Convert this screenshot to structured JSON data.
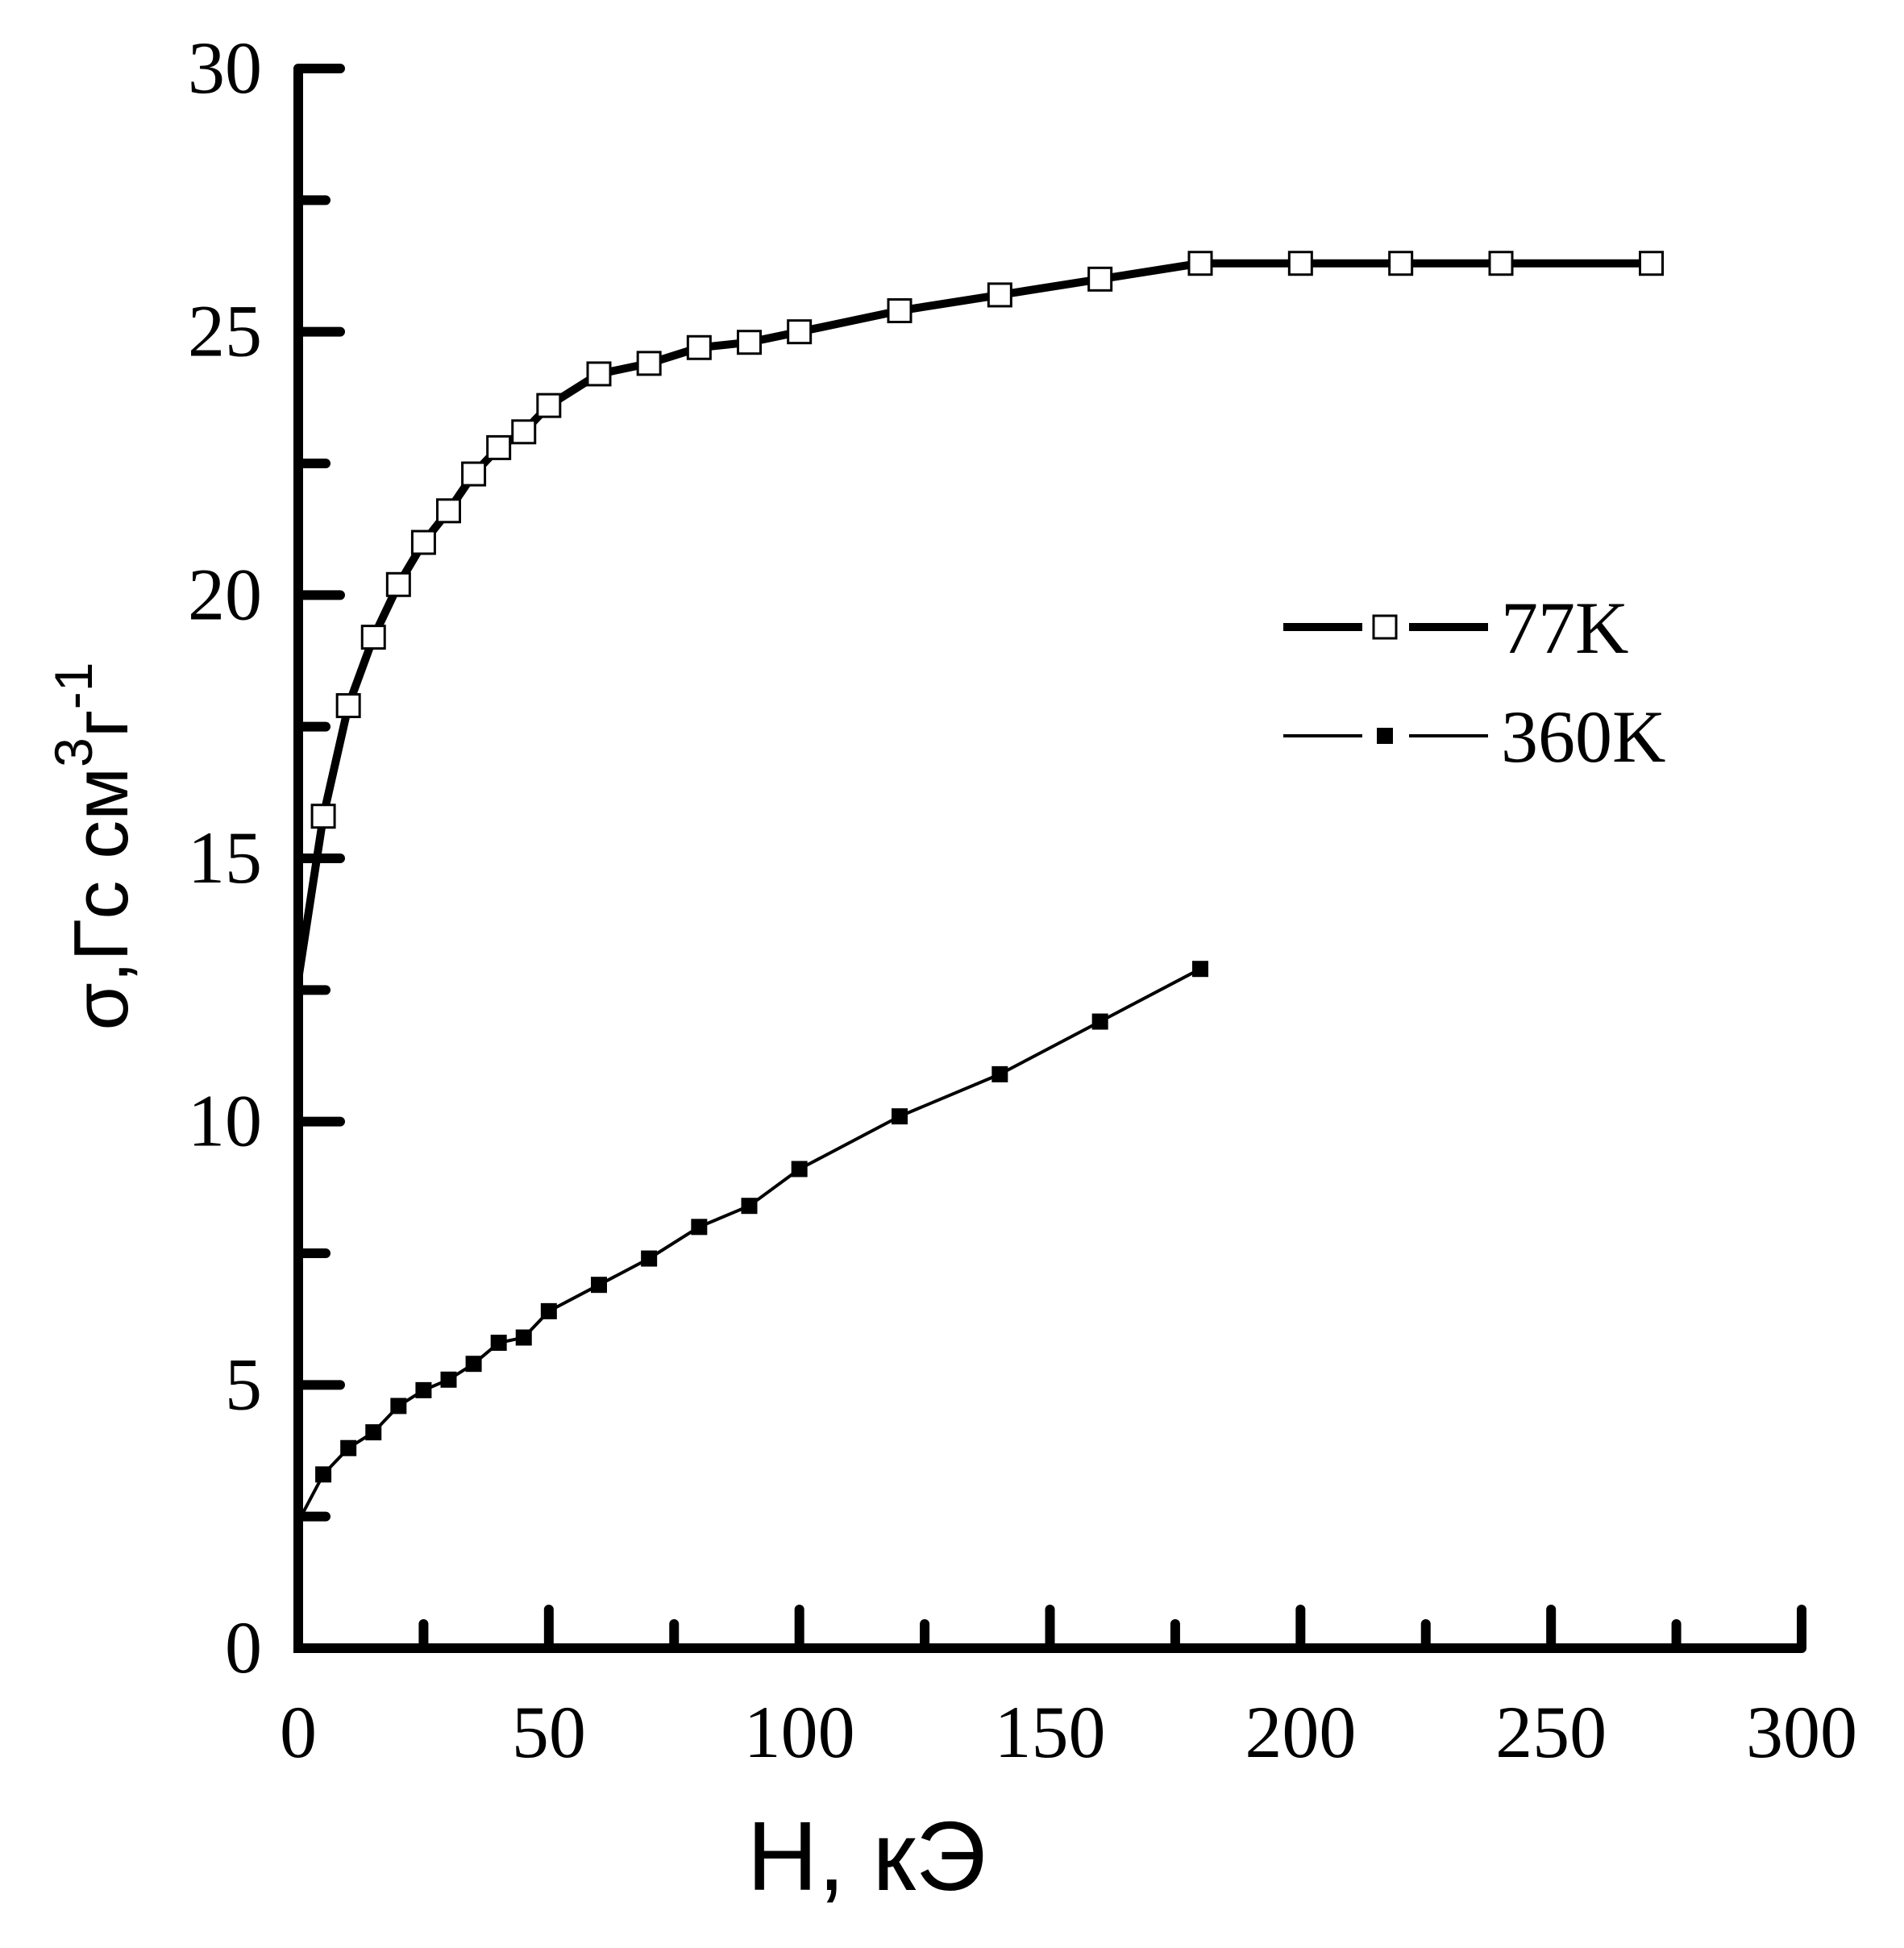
{
  "chart_data": {
    "type": "line",
    "title": "",
    "xlabel": "H, кЭ",
    "ylabel": {
      "base": "σ,Гс см",
      "sup1": "3",
      "mid": "г",
      "sup2": "-1"
    },
    "xlim": [
      0,
      300
    ],
    "ylim": [
      0,
      30
    ],
    "x_ticks": [
      "0",
      "50",
      "100",
      "150",
      "200",
      "250",
      "300"
    ],
    "y_ticks": [
      "0",
      "5",
      "10",
      "15",
      "20",
      "25",
      "30"
    ],
    "grid": false,
    "legend_position": "right-middle",
    "series": [
      {
        "name": "77K",
        "marker": "open-square",
        "line": "thick",
        "x": [
          0,
          5,
          10,
          15,
          20,
          25,
          30,
          35,
          40,
          45,
          50,
          60,
          70,
          80,
          90,
          100,
          120,
          140,
          160,
          180,
          200,
          220,
          240,
          270
        ],
        "y": [
          12.7,
          15.8,
          17.9,
          19.2,
          20.2,
          21.0,
          21.6,
          22.3,
          22.8,
          23.1,
          23.6,
          24.2,
          24.4,
          24.7,
          24.8,
          25.0,
          25.4,
          25.7,
          26.0,
          26.3,
          26.3,
          26.3,
          26.3,
          26.3
        ]
      },
      {
        "name": "360K",
        "marker": "filled-square",
        "line": "thin",
        "x": [
          0,
          5,
          10,
          15,
          20,
          25,
          30,
          35,
          40,
          45,
          50,
          60,
          70,
          80,
          90,
          100,
          120,
          140,
          160,
          180
        ],
        "y": [
          2.4,
          3.3,
          3.8,
          4.1,
          4.6,
          4.9,
          5.1,
          5.4,
          5.8,
          5.9,
          6.4,
          6.9,
          7.4,
          8.0,
          8.4,
          9.1,
          10.1,
          10.9,
          11.9,
          12.9
        ]
      }
    ]
  }
}
